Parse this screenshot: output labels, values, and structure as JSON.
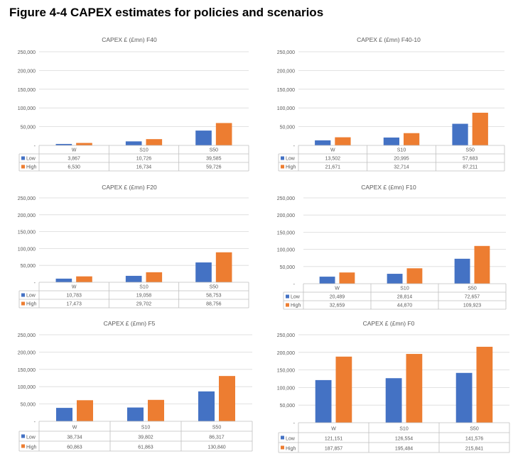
{
  "page": {
    "title": "Figure 4-4 CAPEX estimates for policies and scenarios"
  },
  "colors": {
    "low": "#4472C4",
    "high": "#ED7D31",
    "grid": "#D9D9D9",
    "text": "#595959",
    "table_border": "#BFBFBF"
  },
  "chart_data": [
    {
      "type": "bar",
      "title": "CAPEX £ (£mn) F40",
      "categories": [
        "W",
        "S10",
        "S50"
      ],
      "ylim": [
        0,
        250000
      ],
      "yticks": [
        "250,000",
        "200,000",
        "150,000",
        "100,000",
        "50,000",
        "-"
      ],
      "ytick_values": [
        250000,
        200000,
        150000,
        100000,
        50000,
        0
      ],
      "grid": true,
      "legend": "data-table",
      "series": [
        {
          "name": "Low",
          "values": [
            3867,
            10726,
            39585
          ],
          "labels": [
            "3,867",
            "10,726",
            "39,585"
          ]
        },
        {
          "name": "High",
          "values": [
            6530,
            16734,
            59726
          ],
          "labels": [
            "6,530",
            "16,734",
            "59,726"
          ]
        }
      ]
    },
    {
      "type": "bar",
      "title": "CAPEX £ (£mn) F40-10",
      "categories": [
        "W",
        "S10",
        "S50"
      ],
      "ylim": [
        0,
        250000
      ],
      "yticks": [
        "250,000",
        "200,000",
        "150,000",
        "100,000",
        "50,000",
        "-"
      ],
      "ytick_values": [
        250000,
        200000,
        150000,
        100000,
        50000,
        0
      ],
      "grid": true,
      "legend": "data-table",
      "series": [
        {
          "name": "Low",
          "values": [
            13502,
            20995,
            57683
          ],
          "labels": [
            "13,502",
            "20,995",
            "57,683"
          ]
        },
        {
          "name": "High",
          "values": [
            21671,
            32714,
            87211
          ],
          "labels": [
            "21,671",
            "32,714",
            "87,211"
          ]
        }
      ]
    },
    {
      "type": "bar",
      "title": "CAPEX £ (£mn) F20",
      "categories": [
        "W",
        "S10",
        "S50"
      ],
      "ylim": [
        0,
        250000
      ],
      "yticks": [
        "250,000",
        "200,000",
        "150,000",
        "100,000",
        "50,000",
        "-"
      ],
      "ytick_values": [
        250000,
        200000,
        150000,
        100000,
        50000,
        0
      ],
      "grid": true,
      "legend": "data-table",
      "series": [
        {
          "name": "Low",
          "values": [
            10783,
            19058,
            58753
          ],
          "labels": [
            "10,783",
            "19,058",
            "58,753"
          ]
        },
        {
          "name": "High",
          "values": [
            17473,
            29702,
            88756
          ],
          "labels": [
            "17,473",
            "29,702",
            "88,756"
          ]
        }
      ]
    },
    {
      "type": "bar",
      "title": "CAPEX £ (£mn) F10",
      "categories": [
        "W",
        "S10",
        "S50"
      ],
      "ylim": [
        0,
        250000
      ],
      "yticks": [
        "250,000",
        "200,000",
        "150,000",
        "100,000",
        "50,000",
        "-"
      ],
      "ytick_values": [
        250000,
        200000,
        150000,
        100000,
        50000,
        0
      ],
      "grid": true,
      "legend": "data-table",
      "series": [
        {
          "name": "Low",
          "values": [
            20489,
            28814,
            72657
          ],
          "labels": [
            "20,489",
            "28,814",
            "72,657"
          ]
        },
        {
          "name": "High",
          "values": [
            32659,
            44870,
            109923
          ],
          "labels": [
            "32,659",
            "44,870",
            "109,923"
          ]
        }
      ]
    },
    {
      "type": "bar",
      "title": "CAPEX £ (£mn) F5",
      "categories": [
        "W",
        "S10",
        "S50"
      ],
      "ylim": [
        0,
        250000
      ],
      "yticks": [
        "250,000",
        "200,000",
        "150,000",
        "100,000",
        "50,000",
        "-"
      ],
      "ytick_values": [
        250000,
        200000,
        150000,
        100000,
        50000,
        0
      ],
      "grid": true,
      "legend": "data-table",
      "series": [
        {
          "name": "Low",
          "values": [
            38734,
            39802,
            86317
          ],
          "labels": [
            "38,734",
            "39,802",
            "86,317"
          ]
        },
        {
          "name": "High",
          "values": [
            60863,
            61863,
            130840
          ],
          "labels": [
            "60,863",
            "61,863",
            "130,840"
          ]
        }
      ]
    },
    {
      "type": "bar",
      "title": "CAPEX £ (£mn) F0",
      "categories": [
        "W",
        "S10",
        "S50"
      ],
      "ylim": [
        0,
        250000
      ],
      "yticks": [
        "250,000",
        "200,000",
        "150,000",
        "100,000",
        "50,000",
        "-"
      ],
      "ytick_values": [
        250000,
        200000,
        150000,
        100000,
        50000,
        0
      ],
      "grid": true,
      "legend": "data-table",
      "series": [
        {
          "name": "Low",
          "values": [
            121151,
            126554,
            141576
          ],
          "labels": [
            "121,151",
            "126,554",
            "141,576"
          ]
        },
        {
          "name": "High",
          "values": [
            187857,
            195484,
            215841
          ],
          "labels": [
            "187,857",
            "195,484",
            "215,841"
          ]
        }
      ]
    }
  ]
}
